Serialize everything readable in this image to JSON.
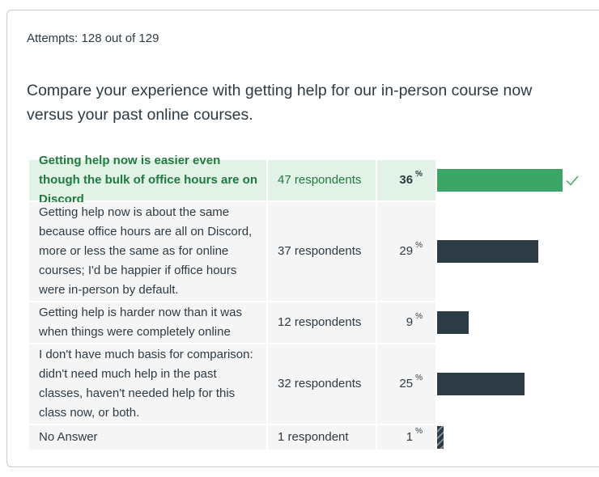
{
  "attempts_text": "Attempts: 128 out of 129",
  "question_text": "Compare your experience with getting help for our in-person course now versus your past online courses.",
  "percent_symbol": "%",
  "colors": {
    "correct_bar": "#3aa564",
    "bar": "#2d3b45",
    "correct_text": "#1f7a3e",
    "correct_bg": "#e3f2e6",
    "row_bg": "#f5f5f5"
  },
  "answers": [
    {
      "text": "Getting help now is easier even though the bulk of office hours are on Discord",
      "respondents": "47 respondents",
      "percent": "36",
      "fraction": 0.36,
      "correct": true,
      "icon": "checkmark-icon"
    },
    {
      "text": "Getting help now is about the same because office hours are all on Discord, more or less the same as for online courses; I'd be happier if office hours were in-person by default.",
      "respondents": "37 respondents",
      "percent": "29",
      "fraction": 0.29,
      "correct": false
    },
    {
      "text": "Getting help is harder now than it was when things were completely online",
      "respondents": "12 respondents",
      "percent": "9",
      "fraction": 0.09,
      "correct": false
    },
    {
      "text": "I don't have much basis for comparison: didn't need much help in the past classes, haven't needed help for this class now, or both.",
      "respondents": "32 respondents",
      "percent": "25",
      "fraction": 0.25,
      "correct": false
    },
    {
      "text": "No Answer",
      "respondents": "1 respondent",
      "percent": "1",
      "fraction": 0.01,
      "correct": false
    }
  ]
}
